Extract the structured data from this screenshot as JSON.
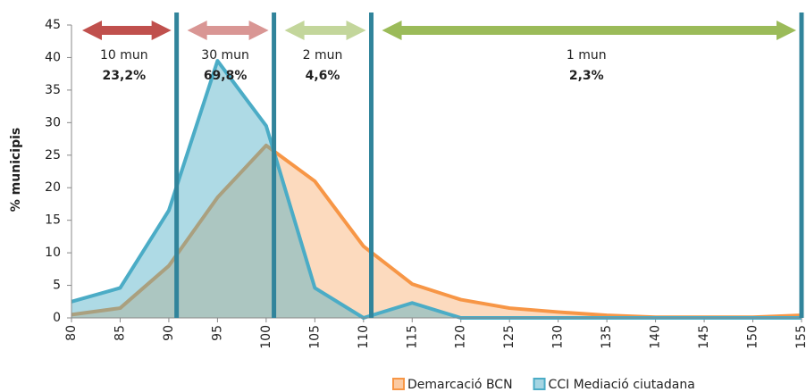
{
  "chart_data": {
    "type": "area",
    "x": [
      80,
      85,
      90,
      95,
      100,
      105,
      110,
      115,
      120,
      125,
      130,
      135,
      140,
      145,
      150,
      155
    ],
    "series": [
      {
        "name": "Demarcació BCN",
        "color": "#f79646",
        "values": [
          0.5,
          1.5,
          8,
          18.5,
          26.5,
          21,
          11,
          5.2,
          2.8,
          1.5,
          0.9,
          0.4,
          0.1,
          0.1,
          0.1,
          0.4
        ]
      },
      {
        "name": "CCI Mediació ciutadana",
        "color": "#4bacc6",
        "values": [
          2.5,
          4.6,
          16.5,
          39.5,
          29.5,
          4.6,
          0,
          2.3,
          0,
          0,
          0,
          0,
          0,
          0,
          0,
          0
        ]
      }
    ],
    "ylabel": "% municipis",
    "xlim": [
      80,
      155
    ],
    "xticks": [
      80,
      85,
      90,
      95,
      100,
      105,
      110,
      115,
      120,
      125,
      130,
      135,
      140,
      145,
      150,
      155
    ],
    "ylim": [
      0,
      45
    ],
    "yticks": [
      0,
      5,
      10,
      15,
      20,
      25,
      30,
      35,
      40,
      45
    ],
    "vlines": [
      90.8,
      100.8,
      110.8,
      155
    ],
    "vline_color": "#31849b",
    "regions": [
      {
        "label": "10 mun",
        "share": "23,2%",
        "color": "#c0504d"
      },
      {
        "label": "30 mun",
        "share": "69,8%",
        "color": "#d99694"
      },
      {
        "label": "2 mun",
        "share": "4,6%",
        "color": "#c3d69b"
      },
      {
        "label": "1 mun",
        "share": "2,3%",
        "color": "#9bbb59"
      }
    ],
    "legend": "bottom-right"
  }
}
